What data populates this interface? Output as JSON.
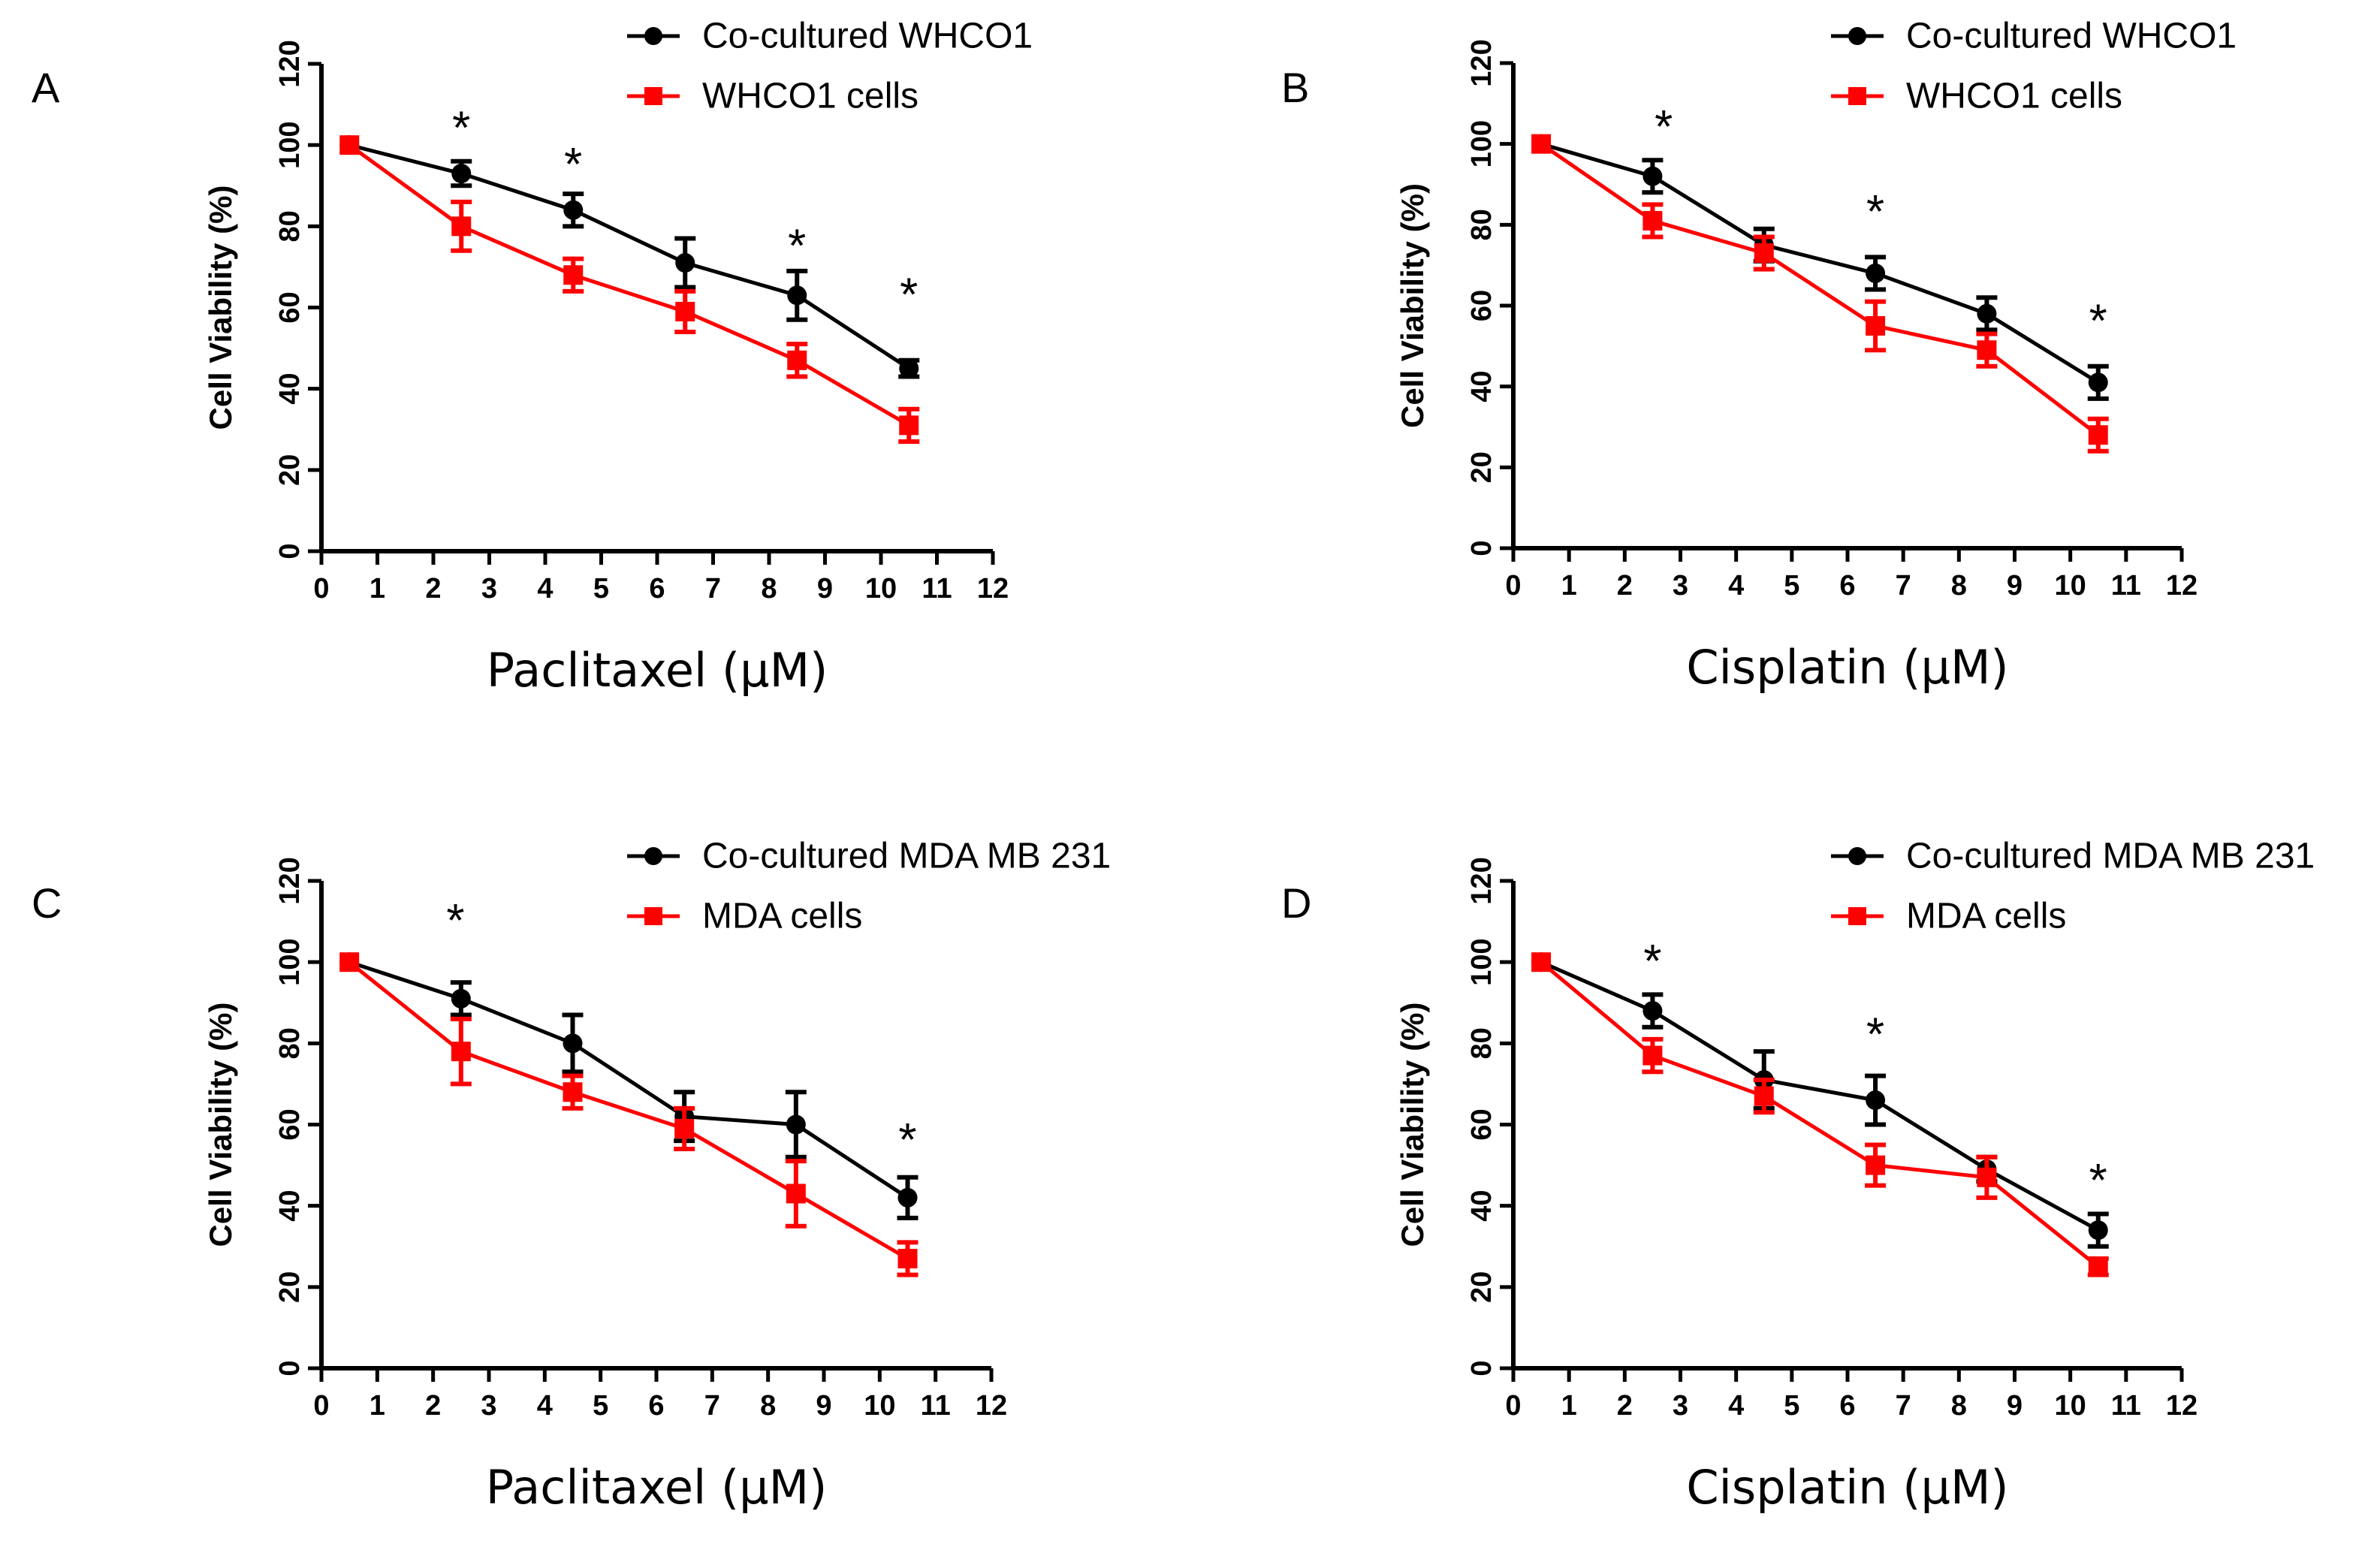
{
  "chart_data": [
    {
      "panel": "A",
      "type": "line",
      "xlabel": "Paclitaxel (μM)",
      "ylabel": "Cell Viability (%)",
      "xlim": [
        0,
        12
      ],
      "ylim": [
        0,
        120
      ],
      "x_ticks": [
        0,
        1,
        2,
        3,
        4,
        5,
        6,
        7,
        8,
        9,
        10,
        11,
        12
      ],
      "y_ticks": [
        0,
        20,
        40,
        60,
        80,
        100,
        120
      ],
      "legend_position": "top-right",
      "series": [
        {
          "name": "Co-cultured WHCO1",
          "color": "#000000",
          "marker": "circle",
          "x": [
            0.5,
            2.5,
            4.5,
            6.5,
            8.5,
            10.5
          ],
          "values": [
            100,
            93,
            84,
            71,
            63,
            45
          ],
          "errors": [
            0,
            3,
            4,
            6,
            6,
            2
          ]
        },
        {
          "name": "WHCO1 cells",
          "color": "#ff0000",
          "marker": "square",
          "x": [
            0.5,
            2.5,
            4.5,
            6.5,
            8.5,
            10.5
          ],
          "values": [
            100,
            80,
            68,
            59,
            47,
            31
          ],
          "errors": [
            0,
            6,
            4,
            5,
            4,
            4
          ]
        }
      ],
      "significance": [
        {
          "x": 2.5,
          "y": 104,
          "text": "*"
        },
        {
          "x": 4.5,
          "y": 95,
          "text": "*"
        },
        {
          "x": 8.5,
          "y": 75,
          "text": "*"
        },
        {
          "x": 10.5,
          "y": 63,
          "text": "*"
        }
      ]
    },
    {
      "panel": "B",
      "type": "line",
      "xlabel": "Cisplatin (μM)",
      "ylabel": "Cell Viability (%)",
      "xlim": [
        0,
        12
      ],
      "ylim": [
        0,
        120
      ],
      "x_ticks": [
        0,
        1,
        2,
        3,
        4,
        5,
        6,
        7,
        8,
        9,
        10,
        11,
        12
      ],
      "y_ticks": [
        0,
        20,
        40,
        60,
        80,
        100,
        120
      ],
      "legend_position": "top-right",
      "series": [
        {
          "name": "Co-cultured WHCO1",
          "color": "#000000",
          "marker": "circle",
          "x": [
            0.5,
            2.5,
            4.5,
            6.5,
            8.5,
            10.5
          ],
          "values": [
            100,
            92,
            75,
            68,
            58,
            41
          ],
          "errors": [
            0,
            4,
            4,
            4,
            4,
            4
          ]
        },
        {
          "name": "WHCO1 cells",
          "color": "#ff0000",
          "marker": "square",
          "x": [
            0.5,
            2.5,
            4.5,
            6.5,
            8.5,
            10.5
          ],
          "values": [
            100,
            81,
            73,
            55,
            49,
            28
          ],
          "errors": [
            0,
            4,
            4,
            6,
            4,
            4
          ]
        }
      ],
      "significance": [
        {
          "x": 2.7,
          "y": 104,
          "text": "*"
        },
        {
          "x": 6.5,
          "y": 83,
          "text": "*"
        },
        {
          "x": 10.5,
          "y": 56,
          "text": "*"
        }
      ]
    },
    {
      "panel": "C",
      "type": "line",
      "xlabel": "Paclitaxel (μM)",
      "ylabel": "Cell Viability (%)",
      "xlim": [
        0,
        12
      ],
      "ylim": [
        0,
        120
      ],
      "x_ticks": [
        0,
        1,
        2,
        3,
        4,
        5,
        6,
        7,
        8,
        9,
        10,
        11,
        12
      ],
      "y_ticks": [
        0,
        20,
        40,
        60,
        80,
        100,
        120
      ],
      "legend_position": "top-right",
      "series": [
        {
          "name": "Co-cultured MDA MB 231",
          "color": "#000000",
          "marker": "circle",
          "x": [
            0.5,
            2.5,
            4.5,
            6.5,
            8.5,
            10.5
          ],
          "values": [
            100,
            91,
            80,
            62,
            60,
            42
          ],
          "errors": [
            0,
            4,
            7,
            6,
            8,
            5
          ]
        },
        {
          "name": "MDA cells",
          "color": "#ff0000",
          "marker": "square",
          "x": [
            0.5,
            2.5,
            4.5,
            6.5,
            8.5,
            10.5
          ],
          "values": [
            100,
            78,
            68,
            59,
            43,
            27
          ],
          "errors": [
            0,
            8,
            4,
            5,
            8,
            4
          ]
        }
      ],
      "significance": [
        {
          "x": 2.4,
          "y": 110,
          "text": "*"
        },
        {
          "x": 10.5,
          "y": 56,
          "text": "*"
        }
      ]
    },
    {
      "panel": "D",
      "type": "line",
      "xlabel": "Cisplatin (μM)",
      "ylabel": "Cell Viability (%)",
      "xlim": [
        0,
        12
      ],
      "ylim": [
        0,
        120
      ],
      "x_ticks": [
        0,
        1,
        2,
        3,
        4,
        5,
        6,
        7,
        8,
        9,
        10,
        11,
        12
      ],
      "y_ticks": [
        0,
        20,
        40,
        60,
        80,
        100,
        120
      ],
      "legend_position": "top-right",
      "series": [
        {
          "name": "Co-cultured MDA MB 231",
          "color": "#000000",
          "marker": "circle",
          "x": [
            0.5,
            2.5,
            4.5,
            6.5,
            8.5,
            10.5
          ],
          "values": [
            100,
            88,
            71,
            66,
            49,
            34
          ],
          "errors": [
            0,
            4,
            7,
            6,
            3,
            4
          ]
        },
        {
          "name": "MDA cells",
          "color": "#ff0000",
          "marker": "square",
          "x": [
            0.5,
            2.5,
            4.5,
            6.5,
            8.5,
            10.5
          ],
          "values": [
            100,
            77,
            67,
            50,
            47,
            25
          ],
          "errors": [
            0,
            4,
            4,
            5,
            5,
            2
          ]
        }
      ],
      "significance": [
        {
          "x": 2.5,
          "y": 100,
          "text": "*"
        },
        {
          "x": 6.5,
          "y": 82,
          "text": "*"
        },
        {
          "x": 10.5,
          "y": 46,
          "text": "*"
        }
      ]
    }
  ]
}
